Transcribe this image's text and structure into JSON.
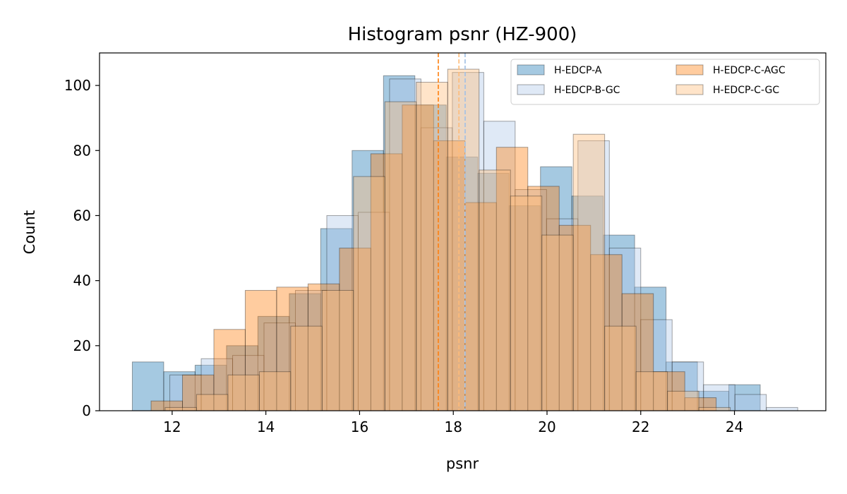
{
  "chart_data": {
    "type": "histogram",
    "title": "Histogram psnr (HZ-900)",
    "xlabel": "psnr",
    "ylabel": "Count",
    "xlim": [
      10.45,
      25.95
    ],
    "ylim": [
      0,
      110
    ],
    "xticks": [
      12,
      14,
      16,
      18,
      20,
      22,
      24
    ],
    "yticks": [
      0,
      20,
      40,
      60,
      80,
      100
    ],
    "grid": false,
    "legend": {
      "placement": "top-right",
      "columns": 2
    },
    "series": [
      {
        "name": "H-EDCP-A",
        "color": "#1f77b4",
        "alpha": 0.4,
        "edges": [
          11.15,
          11.82,
          12.49,
          13.16,
          13.83,
          14.5,
          15.17,
          15.84,
          16.51,
          17.18,
          17.85,
          18.52,
          19.19,
          19.86,
          20.53,
          21.2,
          21.87,
          22.54,
          23.21,
          23.88,
          24.55
        ],
        "counts": [
          15,
          12,
          14,
          20,
          29,
          36,
          56,
          80,
          103,
          94,
          78,
          73,
          63,
          75,
          66,
          54,
          38,
          15,
          6,
          8
        ]
      },
      {
        "name": "H-EDCP-B-GC",
        "color": "#aec7e8",
        "alpha": 0.4,
        "edges": [
          11.95,
          12.62,
          13.29,
          13.96,
          14.63,
          15.3,
          15.97,
          16.64,
          17.31,
          17.98,
          18.65,
          19.32,
          19.99,
          20.66,
          21.33,
          22.0,
          22.67,
          23.34,
          24.01,
          24.68,
          25.35
        ],
        "counts": [
          11,
          16,
          17,
          27,
          37,
          60,
          61,
          102,
          87,
          104,
          89,
          68,
          59,
          83,
          50,
          28,
          15,
          8,
          5,
          1
        ]
      },
      {
        "name": "H-EDCP-C-AGC",
        "color": "#ff7f0e",
        "alpha": 0.4,
        "edges": [
          11.55,
          12.22,
          12.89,
          13.56,
          14.23,
          14.9,
          15.57,
          16.24,
          16.91,
          17.58,
          18.25,
          18.92,
          19.59,
          20.26,
          20.93,
          21.6,
          22.27,
          22.94,
          23.61
        ],
        "counts": [
          3,
          11,
          25,
          37,
          38,
          39,
          50,
          79,
          94,
          83,
          64,
          81,
          69,
          57,
          48,
          36,
          12,
          4
        ]
      },
      {
        "name": "H-EDCP-C-GC",
        "color": "#ffbb78",
        "alpha": 0.4,
        "edges": [
          11.85,
          12.52,
          13.19,
          13.86,
          14.53,
          15.2,
          15.87,
          16.54,
          17.21,
          17.88,
          18.55,
          19.22,
          19.89,
          20.56,
          21.23,
          21.9,
          22.57,
          23.24,
          23.91
        ],
        "counts": [
          1,
          5,
          11,
          12,
          26,
          37,
          72,
          95,
          101,
          105,
          74,
          66,
          54,
          85,
          26,
          12,
          6,
          1
        ]
      }
    ],
    "mean_lines": [
      {
        "x": 18.25,
        "color": "#1f77b4"
      },
      {
        "x": 18.25,
        "color": "#aec7e8"
      },
      {
        "x": 17.68,
        "color": "#ff7f0e"
      },
      {
        "x": 18.12,
        "color": "#ffbb78"
      }
    ]
  }
}
